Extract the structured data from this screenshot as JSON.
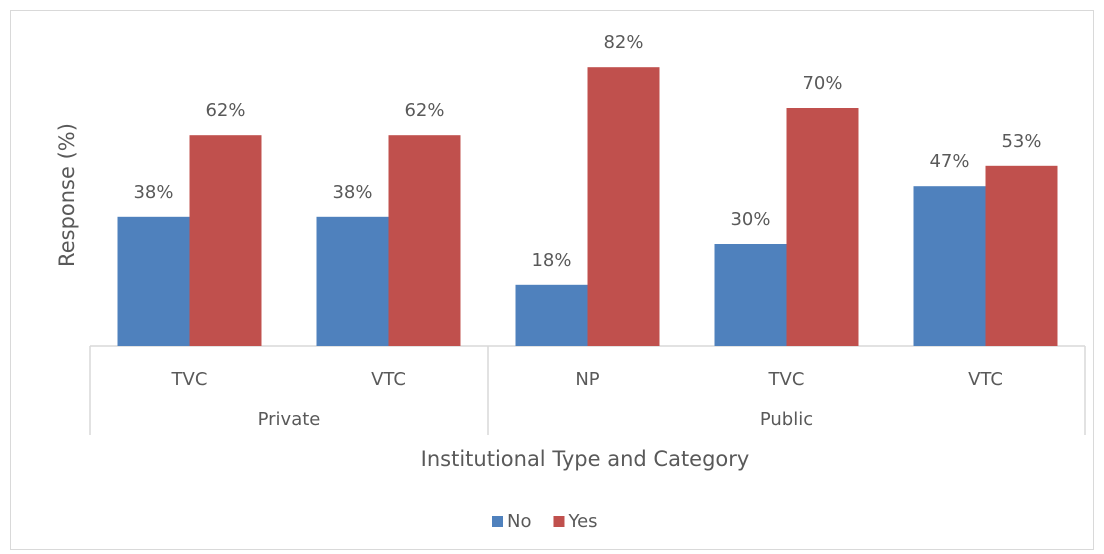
{
  "chart_data": {
    "type": "bar",
    "x_label": "Institutional Type and Category",
    "y_label": "Response (%)",
    "groups": [
      {
        "name": "Private",
        "categories": [
          "TVC",
          "VTC"
        ]
      },
      {
        "name": "Public",
        "categories": [
          "NP",
          "TVC",
          "VTC"
        ]
      }
    ],
    "series": [
      {
        "name": "No",
        "color": "#4f81bd",
        "values": [
          38,
          38,
          18,
          30,
          47
        ],
        "value_labels": [
          "38%",
          "38%",
          "18%",
          "30%",
          "47%"
        ]
      },
      {
        "name": "Yes",
        "color": "#c0504d",
        "values": [
          62,
          62,
          82,
          70,
          53
        ],
        "value_labels": [
          "62%",
          "62%",
          "82%",
          "70%",
          "53%"
        ]
      }
    ],
    "ylim": [
      0,
      90
    ],
    "legend": "bottom"
  }
}
